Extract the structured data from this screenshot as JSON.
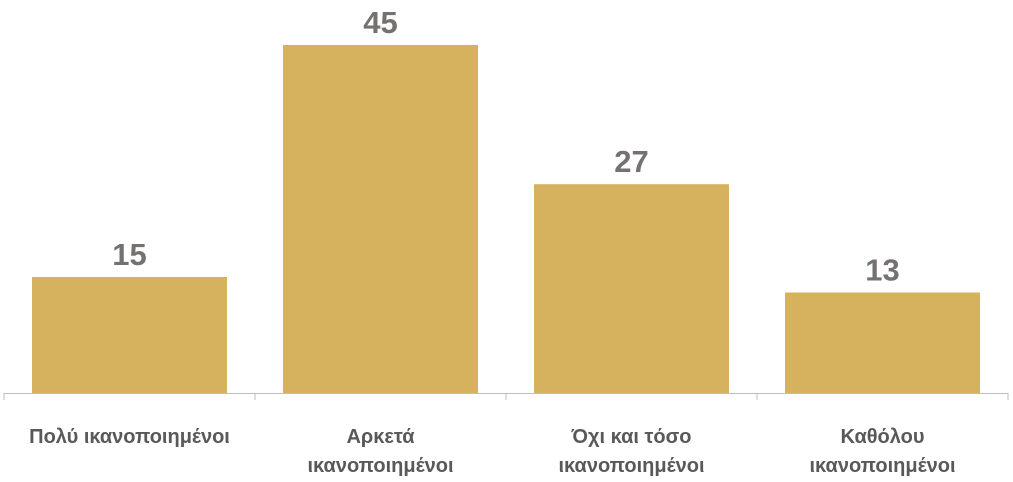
{
  "chart_data": {
    "type": "bar",
    "title": "",
    "xlabel": "",
    "ylabel": "",
    "categories": [
      [
        "Πολύ ικανοποιημένοι"
      ],
      [
        "Αρκετά",
        "ικανοποιημένοι"
      ],
      [
        "Όχι και τόσο",
        "ικανοποιημένοι"
      ],
      [
        "Καθόλου",
        "ικανοποιημένοι"
      ]
    ],
    "values": [
      15,
      45,
      27,
      13
    ],
    "ylim": [
      0,
      45
    ],
    "grid": false,
    "legend": "none",
    "bar_color": "#D6B25E",
    "value_label_color": "#767171",
    "category_label_color": "#595959",
    "axis_color": "#BFBFBF"
  }
}
